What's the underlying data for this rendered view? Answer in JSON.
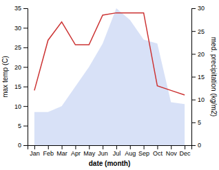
{
  "chart_data": {
    "type": "line",
    "categories": [
      "Jan",
      "Feb",
      "Mar",
      "Apr",
      "May",
      "Jun",
      "Jul",
      "Aug",
      "Sep",
      "Oct",
      "Nov",
      "Dec"
    ],
    "xlabel": "date (month)",
    "ylabel": "max temp (C)",
    "y2label": "med. precipitation (kg/m2)",
    "ylim": [
      0,
      35
    ],
    "yticks": [
      0,
      5,
      10,
      15,
      20,
      25,
      30,
      35
    ],
    "y2lim": [
      0,
      30
    ],
    "y2ticks": [
      0,
      5,
      10,
      15,
      20,
      25,
      30
    ],
    "grid": false,
    "series": [
      {
        "type": "area",
        "color": "#b8c8f0",
        "values": [
          8.5,
          8.5,
          10,
          15,
          20,
          26,
          35,
          32,
          27,
          26,
          11,
          10.5
        ]
      },
      {
        "type": "line",
        "color": "#cc3333",
        "axis": "y2",
        "values": [
          12,
          23,
          27,
          22,
          22,
          28.5,
          29,
          29,
          29,
          13,
          12,
          11
        ]
      }
    ]
  }
}
